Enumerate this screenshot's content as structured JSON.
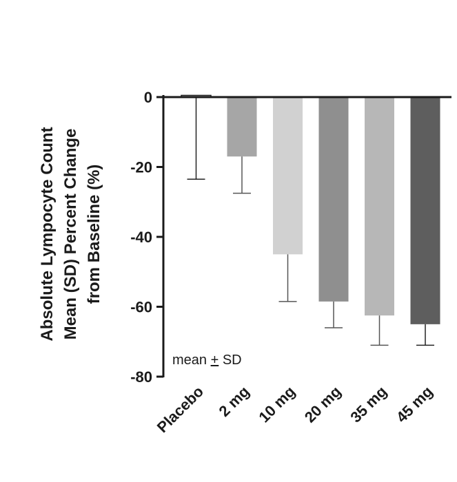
{
  "chart_data": {
    "type": "bar",
    "categories": [
      "Placebo",
      "2 mg",
      "10 mg",
      "20 mg",
      "35 mg",
      "45 mg"
    ],
    "values": [
      0.5,
      -17,
      -45,
      -58.5,
      -62.5,
      -65
    ],
    "error_low": [
      -23.5,
      -27.5,
      -58.5,
      -66,
      -71,
      -71
    ],
    "bar_colors": [
      "#ffffff",
      "#a6a6a6",
      "#d1d1d1",
      "#8f8f8f",
      "#b7b7b7",
      "#5e5e5e"
    ],
    "ylabel_lines": [
      "Absolute Lympocyte Count",
      "Mean (SD) Percent Change",
      "from Baseline (%)"
    ],
    "ylim": [
      -80,
      0
    ],
    "yticks": [
      "0",
      "-20",
      "-40",
      "-60",
      "-80"
    ],
    "ytick_values": [
      0,
      -20,
      -40,
      -60,
      -80
    ],
    "annotation_prefix": "mean ",
    "annotation_pm": "+",
    "annotation_suffix": " SD",
    "grid": false
  }
}
